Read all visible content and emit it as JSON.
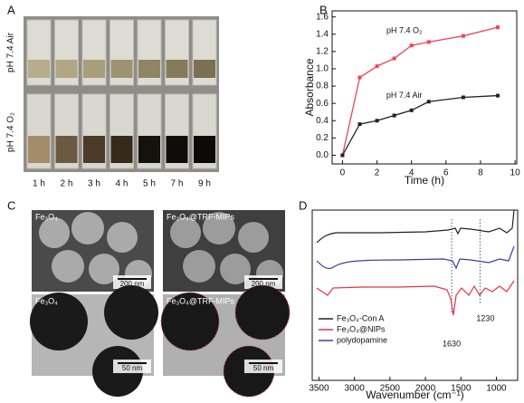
{
  "panel_labels": [
    "A",
    "B",
    "C",
    "D"
  ],
  "panel_a": {
    "row_labels": [
      "pH 7.4 Air",
      "pH 7.4 O₂"
    ],
    "times": [
      "1 h",
      "2 h",
      "3 h",
      "4 h",
      "5 h",
      "7 h",
      "9 h"
    ]
  },
  "chart_data": {
    "type": "line",
    "xlabel": "Time (h)",
    "ylabel": "Absorbance",
    "x": [
      0,
      1,
      2,
      3,
      4,
      5,
      7,
      9
    ],
    "series": [
      {
        "name": "pH 7.4 O₂",
        "color": "#f0435a",
        "values": [
          0,
          0.9,
          1.03,
          1.12,
          1.27,
          1.31,
          1.38,
          1.48
        ]
      },
      {
        "name": "pH 7.4 Air",
        "color": "#222222",
        "values": [
          0,
          0.36,
          0.4,
          0.46,
          0.52,
          0.62,
          0.67,
          0.69
        ]
      }
    ],
    "xlim": [
      -0.6,
      10.1
    ],
    "ylim": [
      -0.1,
      1.67
    ],
    "xticks": [
      0,
      2,
      4,
      6,
      8,
      10
    ],
    "yticks": [
      {
        "value": 0,
        "label": "0.0"
      },
      0.2,
      0.4,
      0.6,
      0.8,
      {
        "value": 1,
        "label": "1.0"
      },
      1.2,
      1.4,
      1.6
    ]
  },
  "panel_c": {
    "labels": [
      "Fe₃O₄",
      "Fe₃O₄@TRF-MIPs",
      "Fe₃O₄",
      "Fe₃O₄@TRF-MIPs"
    ],
    "scale_bars": [
      "200 nm",
      "200 nm",
      "50 nm",
      "50 nm"
    ]
  },
  "panel_d": {
    "xlabel": "Wavenumber (cm⁻¹)",
    "xlim": [
      3595,
      700
    ],
    "xticks": [
      3500,
      3000,
      2500,
      2000,
      1500,
      1000
    ],
    "legend": [
      {
        "name": "Fe₃O₄-Con A",
        "color": "#222222"
      },
      {
        "name": "Fe₃O₄@NIPs",
        "color": "#e8314a"
      },
      {
        "name": "polydopamine",
        "color": "#3b3f9e"
      }
    ],
    "annotations": [
      1630,
      1230
    ]
  }
}
